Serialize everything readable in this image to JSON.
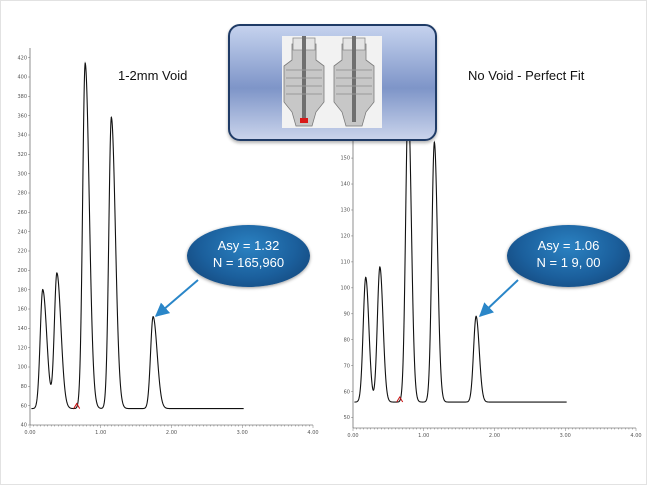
{
  "chart_data": [
    {
      "type": "line",
      "panel": "left",
      "title": "1-2mm Void",
      "x_ticks": [
        "0.00",
        "1.00",
        "2.00",
        "3.00",
        "4.00"
      ],
      "y_ticks": [
        "40",
        "60",
        "80",
        "100",
        "120",
        "140",
        "160",
        "180",
        "200",
        "220",
        "240",
        "260",
        "280",
        "300",
        "320",
        "340",
        "360",
        "380",
        "400",
        "420"
      ],
      "xlim": [
        0,
        4.0
      ],
      "ylim": [
        40,
        430
      ],
      "baseline": 57,
      "peaks": [
        {
          "x": 0.18,
          "height": 180
        },
        {
          "x": 0.38,
          "height": 197
        },
        {
          "x": 0.78,
          "height": 414
        },
        {
          "x": 1.15,
          "height": 358
        },
        {
          "x": 1.74,
          "height": 152
        }
      ],
      "annotation": {
        "line1": "Asy = 1.32",
        "line2": "N = 165,960"
      }
    },
    {
      "type": "line",
      "panel": "right",
      "title": "No Void - Perfect Fit",
      "x_ticks": [
        "0.00",
        "1.00",
        "2.00",
        "3.00",
        "4.00"
      ],
      "y_ticks": [
        "50",
        "60",
        "70",
        "80",
        "90",
        "100",
        "110",
        "120",
        "130",
        "140",
        "150"
      ],
      "xlim": [
        0,
        4.0
      ],
      "ylim": [
        46,
        177
      ],
      "baseline": 56,
      "peaks": [
        {
          "x": 0.18,
          "height": 104
        },
        {
          "x": 0.38,
          "height": 108
        },
        {
          "x": 0.78,
          "height": 172
        },
        {
          "x": 1.15,
          "height": 156
        },
        {
          "x": 1.74,
          "height": 89
        }
      ],
      "annotation": {
        "line1": "Asy = 1.06",
        "line2": "N = 1  9,  00"
      }
    }
  ],
  "colors": {
    "trace": "#111111",
    "artifact": "#cc1111",
    "bubble": "#1b5f9c",
    "arrow": "#2a86c8",
    "inset_border": "#1f3b66"
  }
}
